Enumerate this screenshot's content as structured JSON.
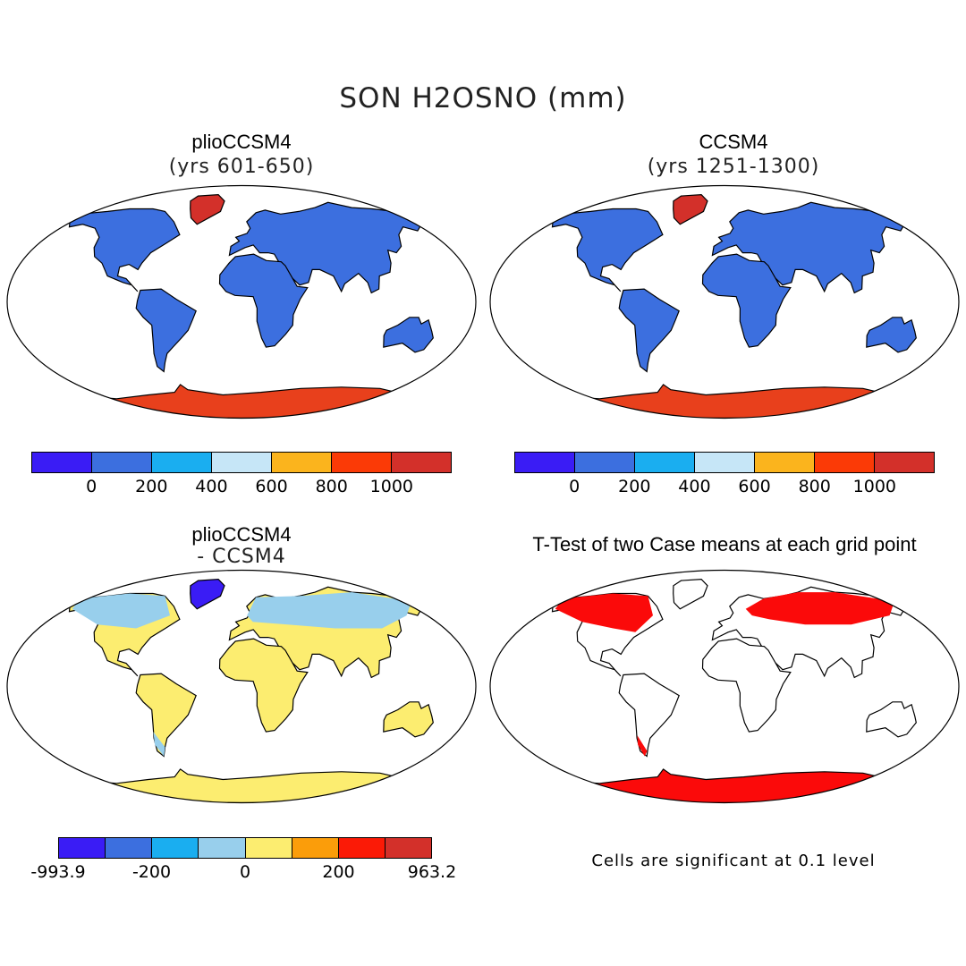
{
  "title": "SON H2OSNO (mm)",
  "panels": [
    {
      "id": "top-left",
      "title": "plioCCSM4",
      "subtitle": "(yrs 601-650)"
    },
    {
      "id": "top-right",
      "title": "CCSM4",
      "subtitle": "(yrs 1251-1300)"
    },
    {
      "id": "bottom-left",
      "title": "plioCCSM4",
      "subtitle": "- CCSM4"
    },
    {
      "id": "bottom-right",
      "title": "T-Test of two Case means at each grid point",
      "subtitle": ""
    }
  ],
  "colorbar_abs": {
    "colors": [
      "#3a1cf5",
      "#3c6fdf",
      "#1aaef0",
      "#c6e6f7",
      "#fbb41d",
      "#fb3a06",
      "#d3302a"
    ],
    "ticks": [
      "0",
      "200",
      "400",
      "600",
      "800",
      "1000"
    ]
  },
  "colorbar_diff": {
    "colors": [
      "#3a1cf5",
      "#3c6fdf",
      "#1aaef0",
      "#98cfec",
      "#fced70",
      "#fb9d0a",
      "#fb1a06",
      "#d3302a"
    ],
    "ticks": [
      "-993.9",
      "-200",
      "0",
      "200",
      "963.2"
    ]
  },
  "note": "Cells are significant at 0.1 level",
  "fills": {
    "abs_land": "#3c6fdf",
    "abs_antarctica": "#e8401c",
    "abs_greenland": "#d3302a",
    "diff_land": "#fced70",
    "diff_north": "#98cfec",
    "diff_greenland": "#3a1cf5",
    "ttest": "#fb0a0a"
  }
}
